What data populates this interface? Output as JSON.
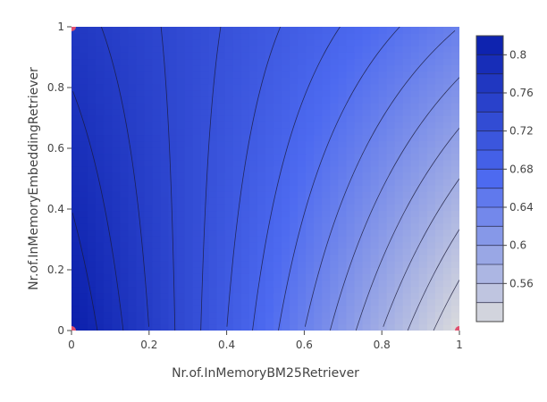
{
  "chart_data": {
    "type": "contour",
    "xlabel": "Nr.of.InMemoryBM25Retriever",
    "ylabel": "Nr.of.InMemoryEmbeddingRetriever",
    "xlim": [
      0,
      1
    ],
    "ylim": [
      0,
      1
    ],
    "x_ticks": [
      0,
      0.2,
      0.4,
      0.6,
      0.8,
      1
    ],
    "y_ticks": [
      0,
      0.2,
      0.4,
      0.6,
      0.8,
      1
    ],
    "x_tick_labels": [
      "0",
      "0.2",
      "0.4",
      "0.6",
      "0.8",
      "1"
    ],
    "y_tick_labels": [
      "0",
      "0.2",
      "0.4",
      "0.6",
      "0.8",
      "1"
    ],
    "z_range": [
      0.52,
      0.82
    ],
    "z_corners": {
      "x0_y0": 0.82,
      "x1_y0": 0.52,
      "x0_y1": 0.77,
      "x1_y1": 0.64
    },
    "contour_levels": [
      0.54,
      0.56,
      0.58,
      0.6,
      0.62,
      0.64,
      0.66,
      0.68,
      0.7,
      0.72,
      0.74,
      0.76,
      0.78,
      0.8
    ],
    "colorbar_ticks": [
      0.56,
      0.6,
      0.64,
      0.68,
      0.72,
      0.76,
      0.8
    ],
    "colorbar_tick_labels": [
      "0.56",
      "0.6",
      "0.64",
      "0.68",
      "0.72",
      "0.76",
      "0.8"
    ],
    "colorscale": [
      "#0a1eaa",
      "#4d6af0",
      "#dcdcdc"
    ],
    "points": [
      {
        "x": 0,
        "y": 1
      },
      {
        "x": 0,
        "y": 0
      },
      {
        "x": 1,
        "y": 0
      }
    ],
    "point_color": "#e0506e",
    "contour_line_color": "#1a1a3a"
  }
}
